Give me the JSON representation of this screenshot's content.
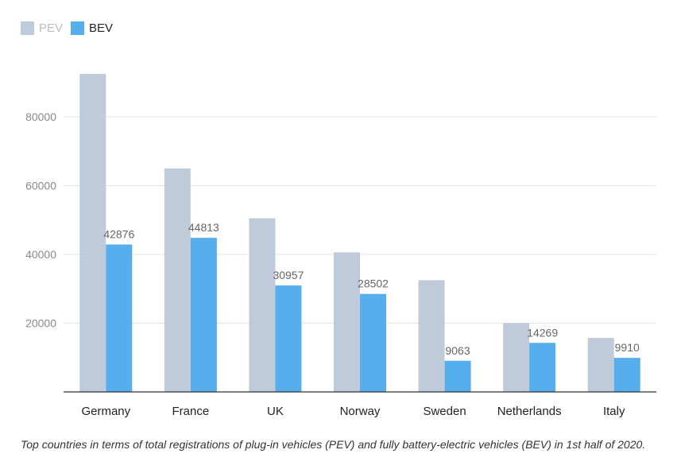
{
  "legend": [
    {
      "name": "PEV",
      "color": "#bfcbda"
    },
    {
      "name": "BEV",
      "color": "#56aeed"
    }
  ],
  "caption": "Top countries in terms of total registrations of plug-in vehicles (PEV) and fully battery-electric vehicles (BEV) in 1st half of 2020.",
  "chart_data": {
    "type": "bar",
    "categories": [
      "Germany",
      "France",
      "UK",
      "Norway",
      "Sweden",
      "Netherlands",
      "Italy"
    ],
    "series": [
      {
        "name": "PEV",
        "color": "#bfcbda",
        "values": [
          92500,
          65000,
          50500,
          40600,
          32500,
          20000,
          15700
        ],
        "labels_shown": false
      },
      {
        "name": "BEV",
        "color": "#56aeed",
        "values": [
          42876,
          44813,
          30957,
          28502,
          9063,
          14269,
          9910
        ],
        "labels_shown": true
      }
    ],
    "yticks": [
      20000,
      40000,
      60000,
      80000
    ],
    "ylim": [
      0,
      100000
    ],
    "grid": true,
    "legend_position": "top-left",
    "title": "",
    "xlabel": "",
    "ylabel": ""
  }
}
